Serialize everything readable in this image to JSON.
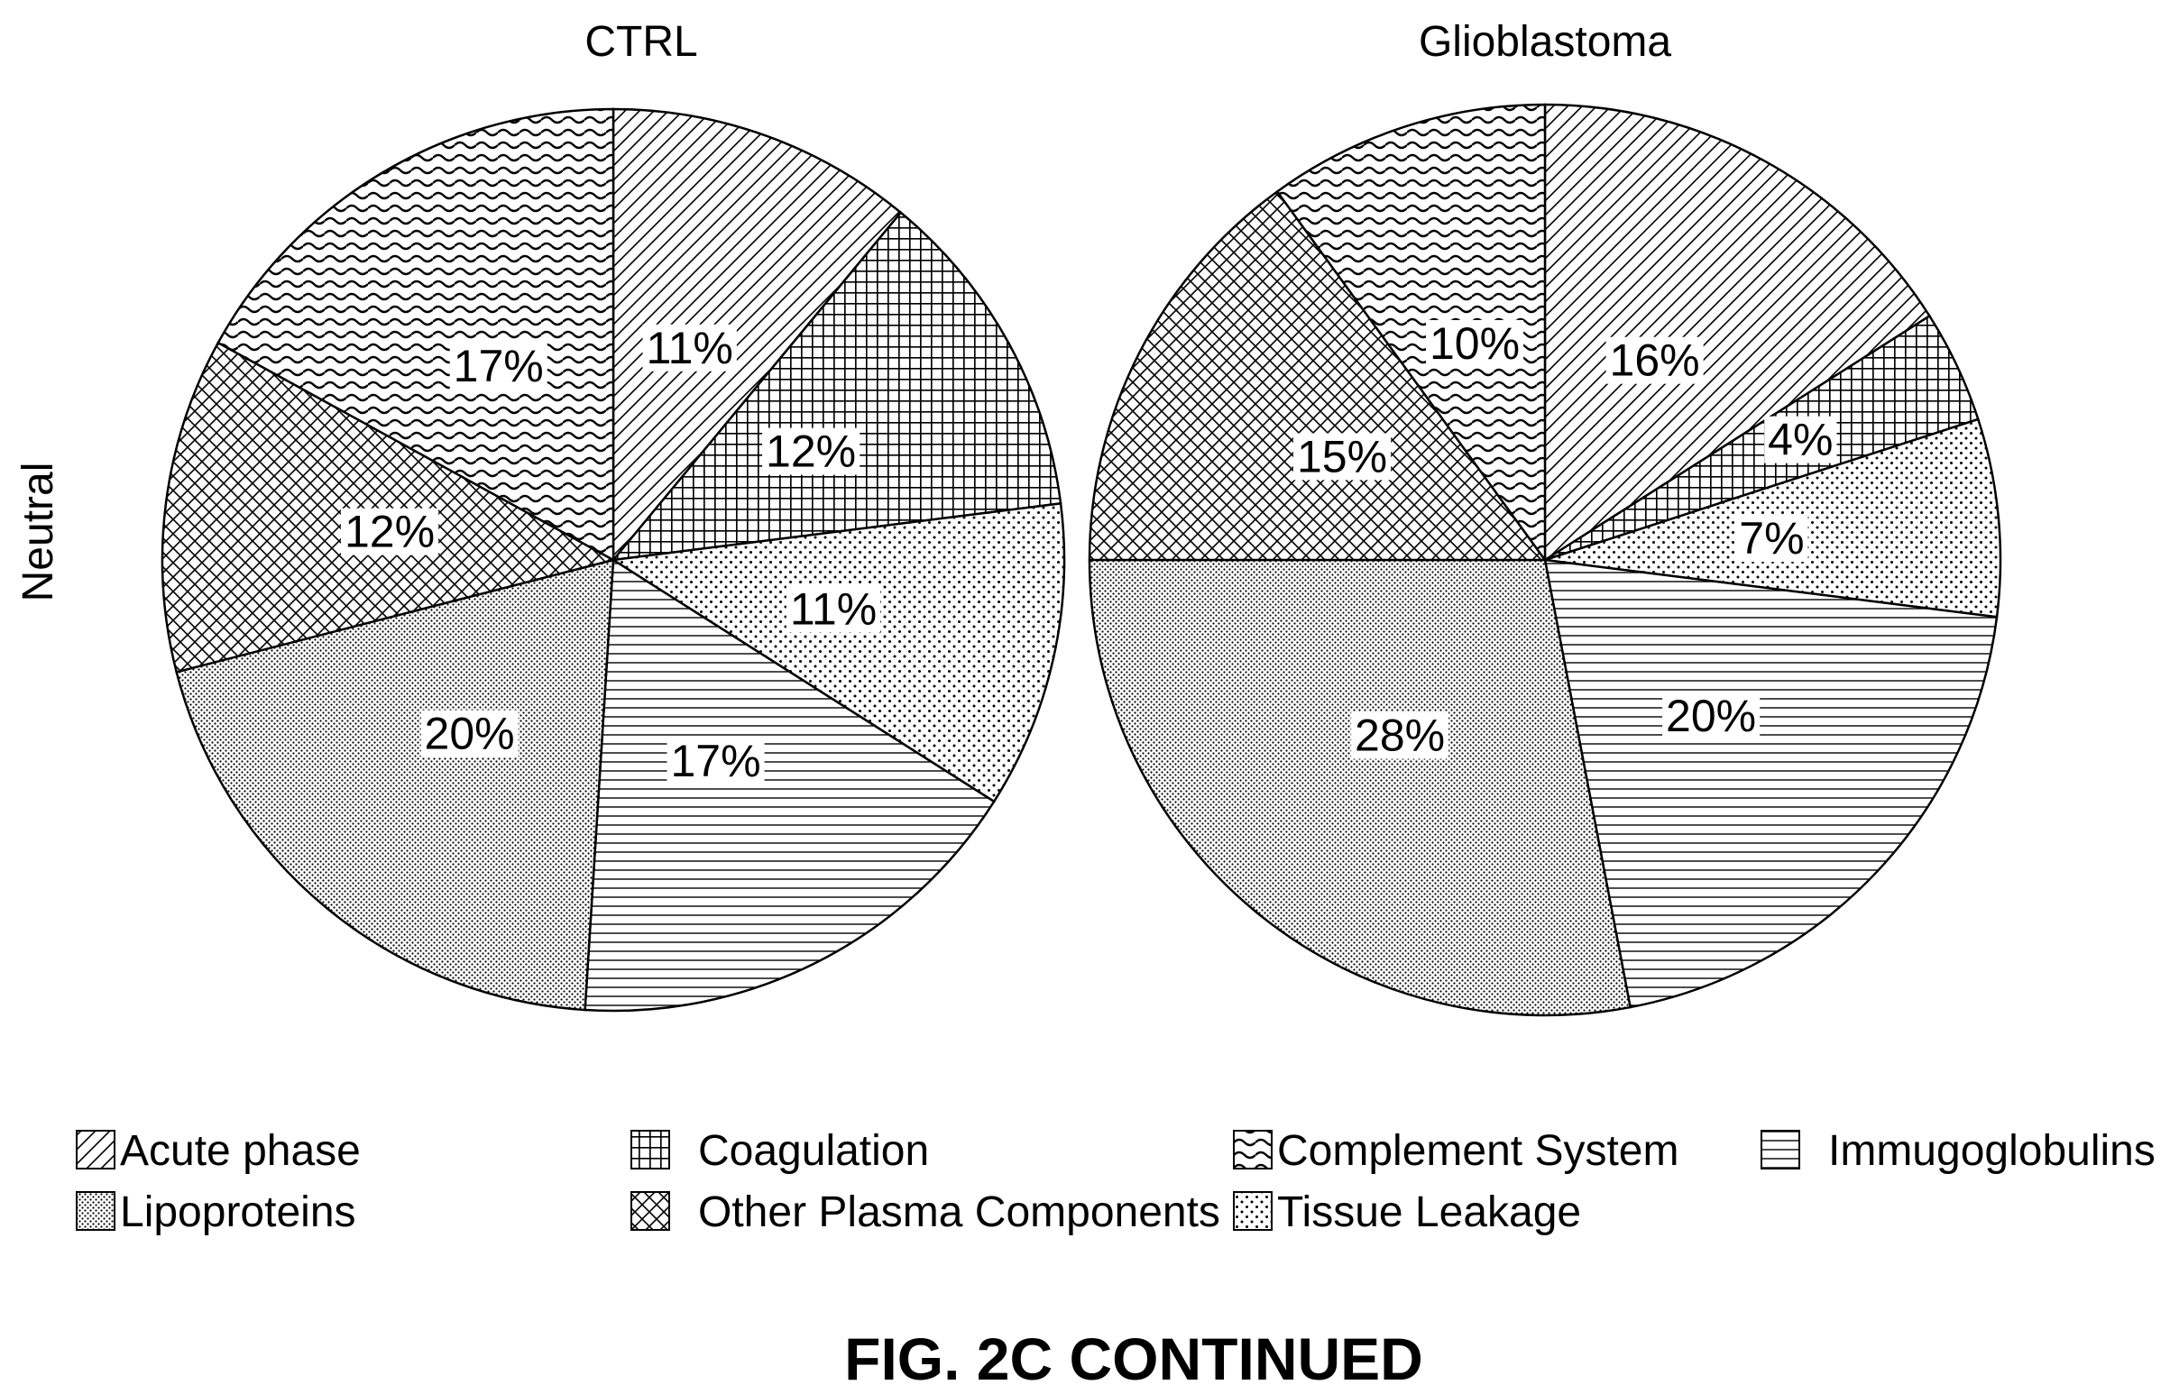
{
  "chart_data": {
    "type": "pie",
    "ylabel": "Neutral",
    "caption": "FIG. 2C CONTINUED",
    "categories": [
      {
        "name": "Acute phase",
        "pattern": "diag"
      },
      {
        "name": "Coagulation",
        "pattern": "grid"
      },
      {
        "name": "Complement System",
        "pattern": "wave"
      },
      {
        "name": "Immugoglobulins",
        "pattern": "horiz"
      },
      {
        "name": "Lipoproteins",
        "pattern": "dense-dots"
      },
      {
        "name": "Other Plasma Components",
        "pattern": "crosshatch"
      },
      {
        "name": "Tissue Leakage",
        "pattern": "sparse-dots"
      }
    ],
    "legend_placement": "bottom",
    "pies": [
      {
        "title": "CTRL",
        "slices": [
          {
            "category": "Acute phase",
            "value": 11,
            "label": "11%"
          },
          {
            "category": "Coagulation",
            "value": 12,
            "label": "12%"
          },
          {
            "category": "Tissue Leakage",
            "value": 11,
            "label": "11%"
          },
          {
            "category": "Immugoglobulins",
            "value": 17,
            "label": "17%"
          },
          {
            "category": "Lipoproteins",
            "value": 20,
            "label": "20%"
          },
          {
            "category": "Other Plasma Components",
            "value": 12,
            "label": "12%"
          },
          {
            "category": "Complement System",
            "value": 17,
            "label": "17%"
          }
        ]
      },
      {
        "title": "Glioblastoma",
        "slices": [
          {
            "category": "Acute phase",
            "value": 16,
            "label": "16%"
          },
          {
            "category": "Coagulation",
            "value": 4,
            "label": "4%"
          },
          {
            "category": "Tissue Leakage",
            "value": 7,
            "label": "7%"
          },
          {
            "category": "Immugoglobulins",
            "value": 20,
            "label": "20%"
          },
          {
            "category": "Lipoproteins",
            "value": 28,
            "label": "28%"
          },
          {
            "category": "Other Plasma Components",
            "value": 15,
            "label": "15%"
          },
          {
            "category": "Complement System",
            "value": 10,
            "label": "10%"
          }
        ]
      }
    ]
  }
}
